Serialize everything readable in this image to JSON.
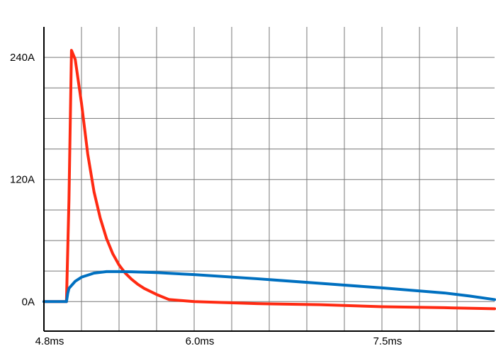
{
  "chart_data": {
    "type": "line",
    "title": "",
    "xlabel": "",
    "ylabel": "",
    "xlim": [
      4.8,
      8.4
    ],
    "ylim": [
      -29,
      270
    ],
    "grid": true,
    "legend": "none",
    "x_ticks": [
      {
        "value": 4.8,
        "label": "4.8ms"
      },
      {
        "value": 6.0,
        "label": "6.0ms"
      },
      {
        "value": 7.5,
        "label": "7.5ms"
      }
    ],
    "y_ticks": [
      {
        "value": 0,
        "label": "0A"
      },
      {
        "value": 120,
        "label": "120A"
      },
      {
        "value": 240,
        "label": "240A"
      }
    ],
    "x_gridlines": [
      5.1,
      5.4,
      5.7,
      6.0,
      6.3,
      6.6,
      6.9,
      7.2,
      7.5,
      7.8,
      8.1
    ],
    "y_gridlines": [
      0,
      30,
      60,
      90,
      120,
      150,
      180,
      210,
      240
    ],
    "series": [
      {
        "color": "#ff2a12",
        "x": [
          4.8,
          4.98,
          5.0,
          5.02,
          5.05,
          5.1,
          5.15,
          5.2,
          5.25,
          5.3,
          5.35,
          5.4,
          5.45,
          5.5,
          5.55,
          5.6,
          5.7,
          5.8,
          6.0,
          6.5,
          7.0,
          7.5,
          8.0,
          8.4
        ],
        "y": [
          0,
          0,
          100,
          247,
          238,
          195,
          145,
          108,
          82,
          62,
          47,
          36,
          28,
          22,
          17,
          13,
          7,
          2,
          0,
          -2,
          -3,
          -5,
          -6,
          -7
        ]
      },
      {
        "color": "#0070c0",
        "x": [
          4.8,
          4.98,
          4.99,
          5.0,
          5.05,
          5.1,
          5.2,
          5.3,
          5.4,
          5.5,
          5.7,
          6.0,
          6.5,
          7.0,
          7.5,
          8.0,
          8.2,
          8.4
        ],
        "y": [
          0,
          0,
          8,
          13,
          20,
          24,
          28,
          29.5,
          29.5,
          29.3,
          28.5,
          26.5,
          22.5,
          18,
          13.5,
          8.5,
          5.5,
          2
        ]
      }
    ]
  }
}
